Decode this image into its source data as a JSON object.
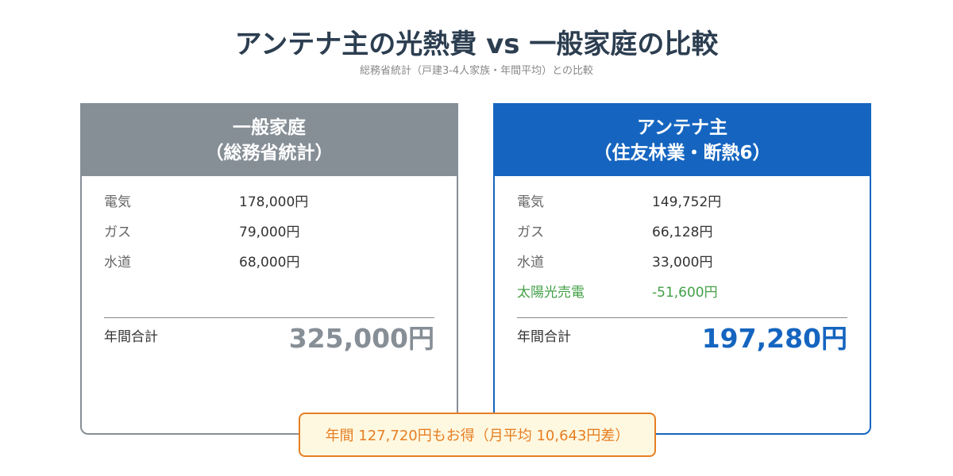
{
  "title": "アンテナ主の光熱費 vs 一般家庭の比較",
  "subtitle": "総務省統計（戸建3-4人家族・年間平均）との比較",
  "general": {
    "heading1": "一般家庭",
    "heading2": "（総務省統計）",
    "rows": [
      {
        "label": "電気",
        "value": "178,000円"
      },
      {
        "label": "ガス",
        "value": "79,000円"
      },
      {
        "label": "水道",
        "value": "68,000円"
      }
    ],
    "total_label": "年間合計",
    "total_value": "325,000円"
  },
  "antenna": {
    "heading1": "アンテナ主",
    "heading2": "（住友林業・断熱6）",
    "rows": [
      {
        "label": "電気",
        "value": "149,752円"
      },
      {
        "label": "ガス",
        "value": "66,128円"
      },
      {
        "label": "水道",
        "value": "33,000円"
      },
      {
        "label": "太陽光売電",
        "value": "-51,600円"
      }
    ],
    "total_label": "年間合計",
    "total_value": "197,280円"
  },
  "savings": "年間 127,720円もお得（月平均 10,643円差）",
  "colors": {
    "general": "#868e96",
    "antenna": "#1565c0",
    "solar": "#43a047",
    "savings": "#e67e22"
  }
}
